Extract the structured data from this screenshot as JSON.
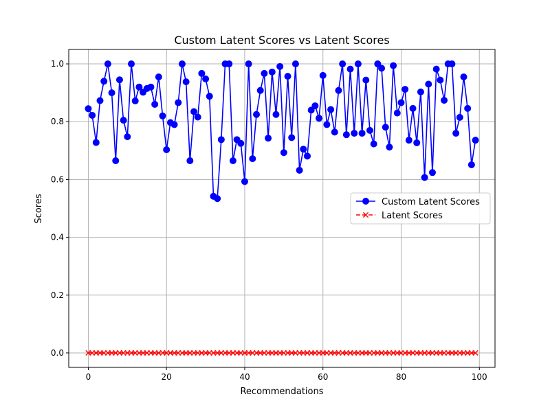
{
  "chart_data": {
    "type": "line",
    "title": "Custom Latent Scores vs Latent Scores",
    "xlabel": "Recommendations",
    "ylabel": "Scores",
    "xlim": [
      -5,
      104
    ],
    "ylim": [
      -0.05,
      1.05
    ],
    "xticks": [
      0,
      20,
      40,
      60,
      80,
      100
    ],
    "xtick_labels": [
      "0",
      "20",
      "40",
      "60",
      "80",
      "100"
    ],
    "yticks": [
      0.0,
      0.2,
      0.4,
      0.6,
      0.8,
      1.0
    ],
    "ytick_labels": [
      "0.0",
      "0.2",
      "0.4",
      "0.6",
      "0.8",
      "1.0"
    ],
    "grid": true,
    "legend_position": "center-right",
    "x": [
      0,
      1,
      2,
      3,
      4,
      5,
      6,
      7,
      8,
      9,
      10,
      11,
      12,
      13,
      14,
      15,
      16,
      17,
      18,
      19,
      20,
      21,
      22,
      23,
      24,
      25,
      26,
      27,
      28,
      29,
      30,
      31,
      32,
      33,
      34,
      35,
      36,
      37,
      38,
      39,
      40,
      41,
      42,
      43,
      44,
      45,
      46,
      47,
      48,
      49,
      50,
      51,
      52,
      53,
      54,
      55,
      56,
      57,
      58,
      59,
      60,
      61,
      62,
      63,
      64,
      65,
      66,
      67,
      68,
      69,
      70,
      71,
      72,
      73,
      74,
      75,
      76,
      77,
      78,
      79,
      80,
      81,
      82,
      83,
      84,
      85,
      86,
      87,
      88,
      89,
      90,
      91,
      92,
      93,
      94,
      95,
      96,
      97,
      98,
      99
    ],
    "series": [
      {
        "name": "Custom Latent Scores",
        "color": "#0000ff",
        "marker": "o",
        "linestyle": "solid",
        "values": [
          0.845,
          0.822,
          0.728,
          0.873,
          0.94,
          1.0,
          0.9,
          0.665,
          0.945,
          0.805,
          0.748,
          1.0,
          0.872,
          0.92,
          0.902,
          0.915,
          0.92,
          0.86,
          0.955,
          0.82,
          0.703,
          0.797,
          0.79,
          0.866,
          1.0,
          0.938,
          0.665,
          0.835,
          0.816,
          0.967,
          0.948,
          0.888,
          0.542,
          0.534,
          0.738,
          1.0,
          1.0,
          0.665,
          0.738,
          0.725,
          0.593,
          1.0,
          0.672,
          0.825,
          0.908,
          0.967,
          0.743,
          0.972,
          0.825,
          0.991,
          0.693,
          0.957,
          0.745,
          1.0,
          0.632,
          0.705,
          0.681,
          0.84,
          0.855,
          0.812,
          0.96,
          0.79,
          0.842,
          0.764,
          0.908,
          1.0,
          0.755,
          0.982,
          0.76,
          1.0,
          0.76,
          0.944,
          0.77,
          0.723,
          1.0,
          0.985,
          0.781,
          0.712,
          0.994,
          0.83,
          0.866,
          0.912,
          0.736,
          0.846,
          0.727,
          0.903,
          0.607,
          0.93,
          0.624,
          0.982,
          0.944,
          0.874,
          1.0,
          1.0,
          0.76,
          0.815,
          0.955,
          0.846,
          0.651,
          0.736
        ]
      },
      {
        "name": "Latent Scores",
        "color": "#ff0000",
        "marker": "x",
        "linestyle": "dashed",
        "values": [
          0,
          0,
          0,
          0,
          0,
          0,
          0,
          0,
          0,
          0,
          0,
          0,
          0,
          0,
          0,
          0,
          0,
          0,
          0,
          0,
          0,
          0,
          0,
          0,
          0,
          0,
          0,
          0,
          0,
          0,
          0,
          0,
          0,
          0,
          0,
          0,
          0,
          0,
          0,
          0,
          0,
          0,
          0,
          0,
          0,
          0,
          0,
          0,
          0,
          0,
          0,
          0,
          0,
          0,
          0,
          0,
          0,
          0,
          0,
          0,
          0,
          0,
          0,
          0,
          0,
          0,
          0,
          0,
          0,
          0,
          0,
          0,
          0,
          0,
          0,
          0,
          0,
          0,
          0,
          0,
          0,
          0,
          0,
          0,
          0,
          0,
          0,
          0,
          0,
          0,
          0,
          0,
          0,
          0,
          0,
          0,
          0,
          0,
          0,
          0
        ]
      }
    ]
  }
}
